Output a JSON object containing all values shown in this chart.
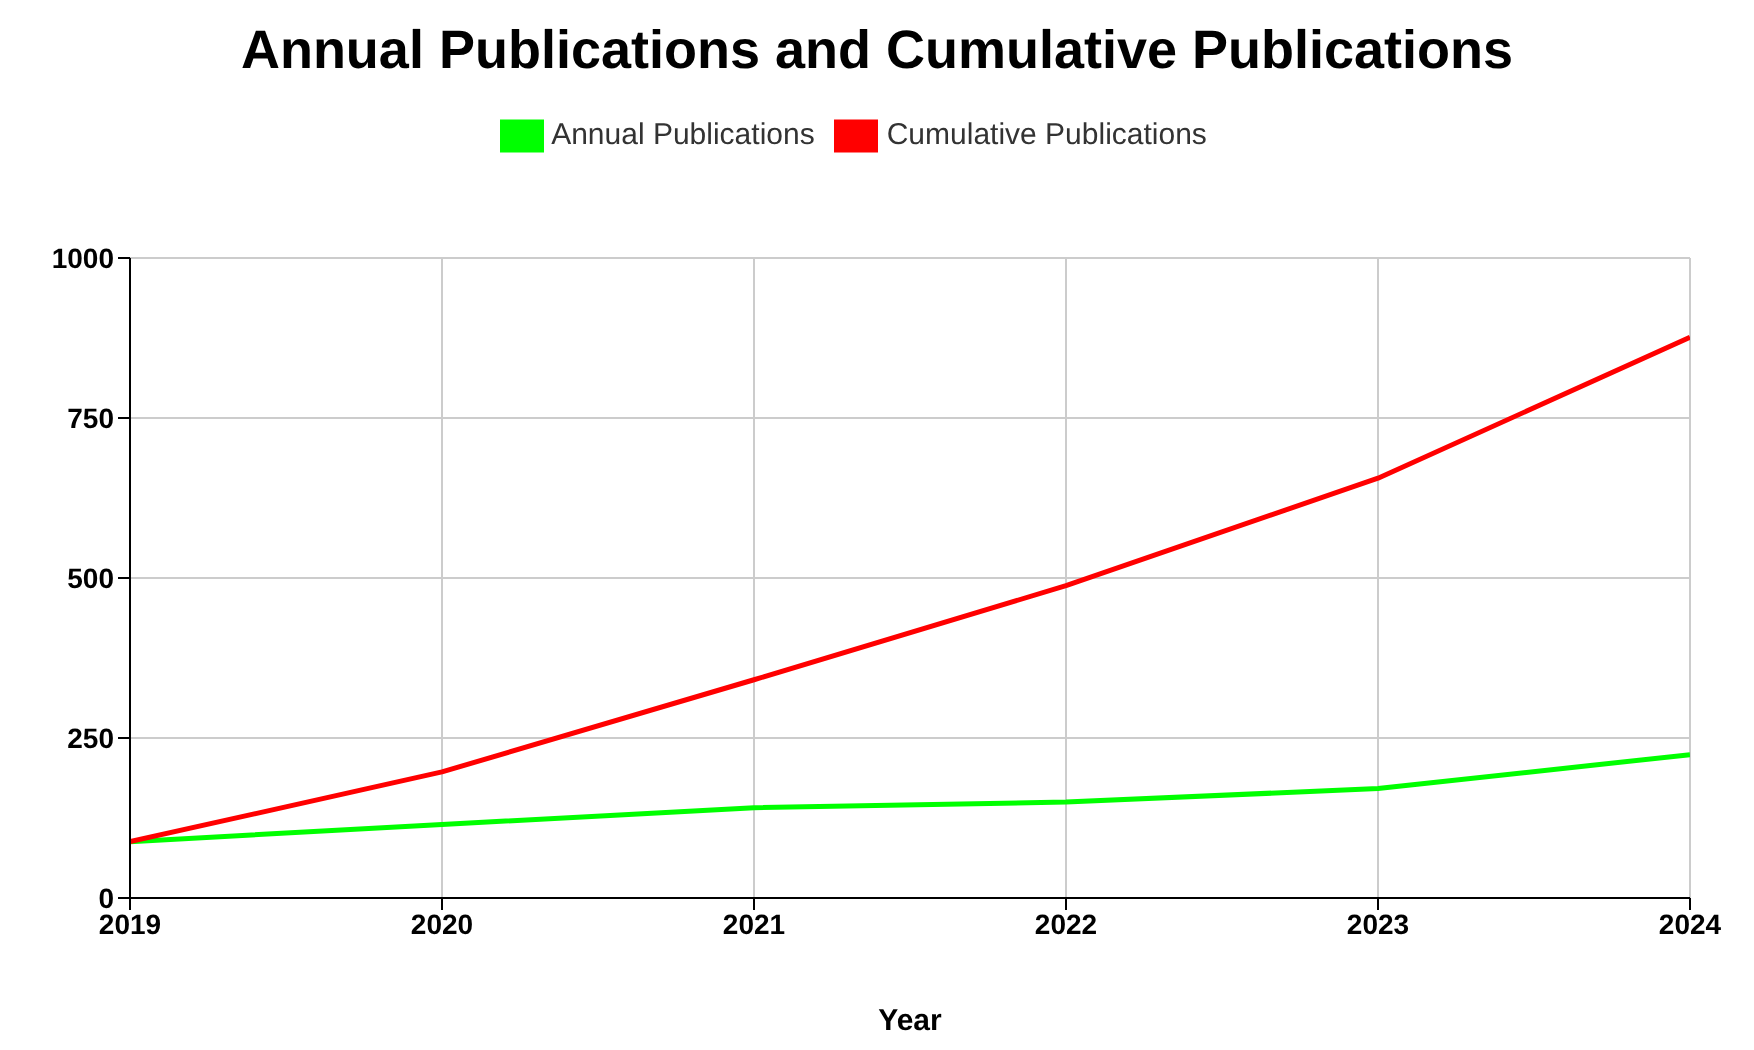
{
  "chart_data": {
    "type": "line",
    "title": "Annual Publications and Cumulative Publications",
    "xlabel": "Year",
    "x": [
      2019,
      2020,
      2021,
      2022,
      2023,
      2024
    ],
    "series": [
      {
        "name": "Annual Publications",
        "color": "#00ff00",
        "values": [
          88,
          115,
          141,
          150,
          171,
          224
        ]
      },
      {
        "name": "Cumulative Publications",
        "color": "#ff0000",
        "values": [
          88,
          197,
          341,
          488,
          656,
          876
        ]
      }
    ],
    "xlim": [
      2019,
      2024
    ],
    "xticks": [
      2019,
      2020,
      2021,
      2022,
      2023,
      2024
    ],
    "ylim": [
      0,
      1000
    ],
    "yticks": [
      0,
      250,
      500,
      750,
      1000
    ],
    "grid": true,
    "legend": "top",
    "marker": "none",
    "line_style": "solid"
  }
}
